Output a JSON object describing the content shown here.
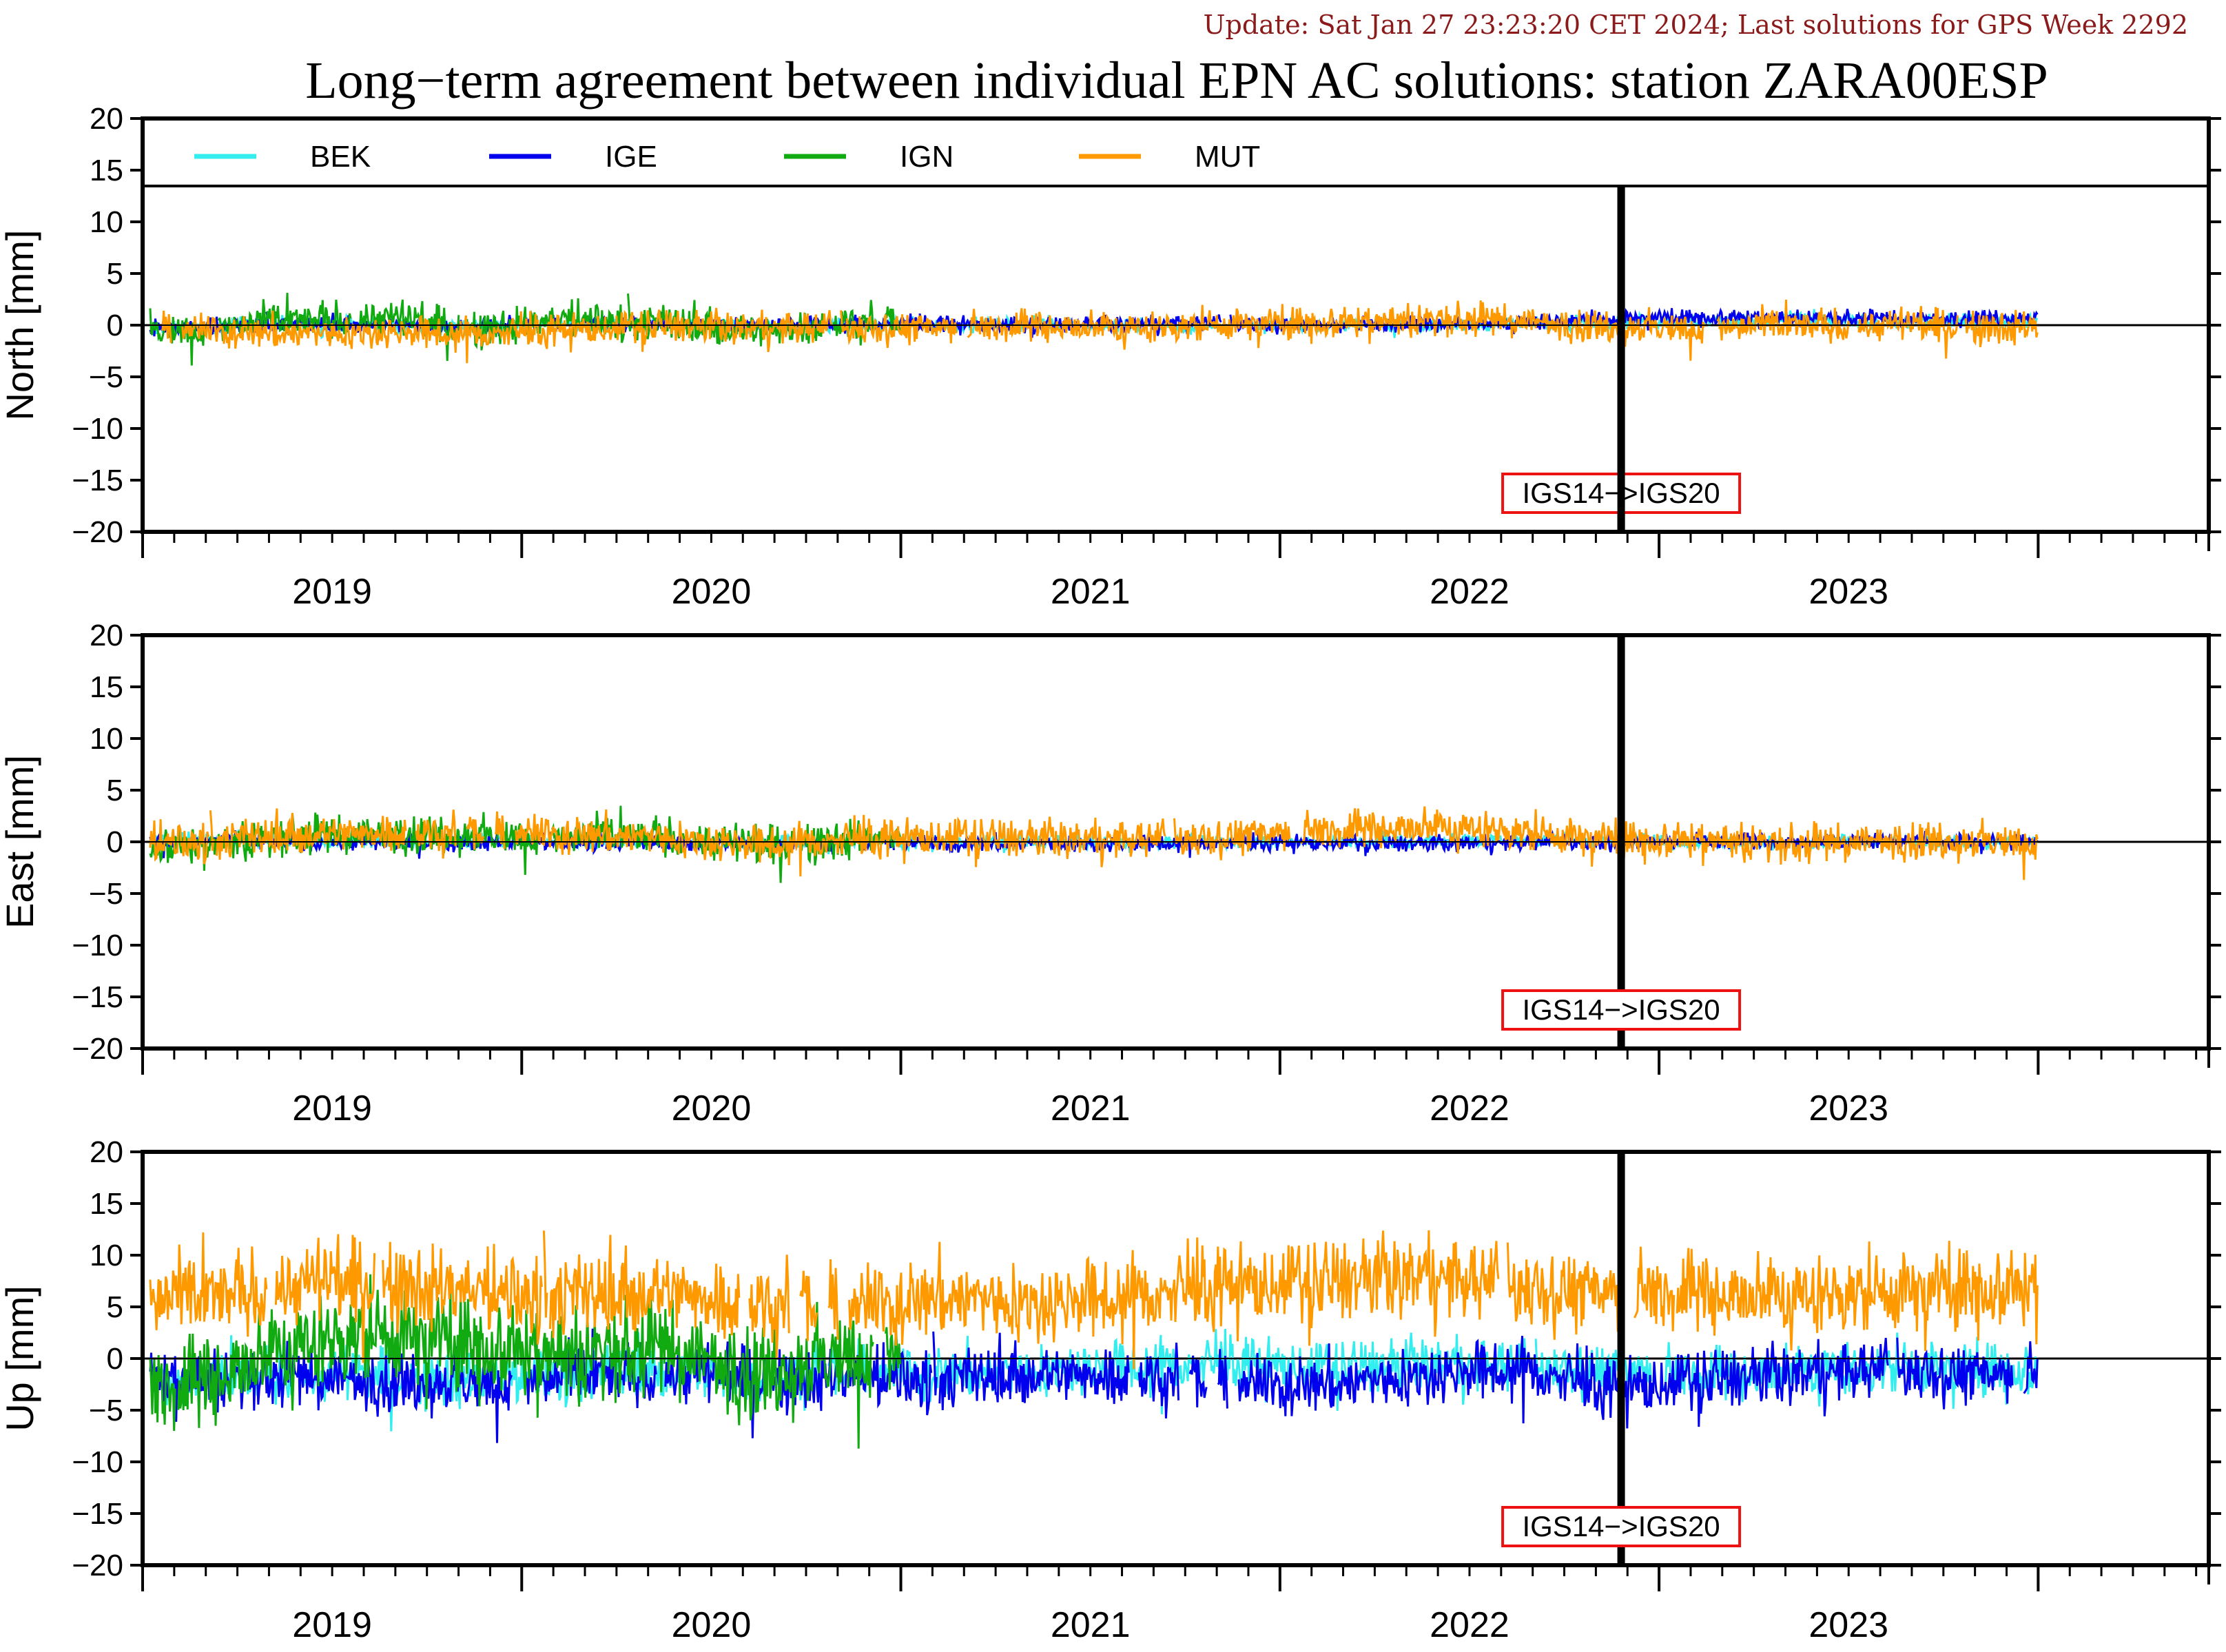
{
  "header": {
    "update_text": "Update: Sat Jan 27 23:23:20 CET 2024; Last solutions for GPS Week 2292",
    "title": "Long−term agreement between individual EPN AC solutions: station ZARA00ESP"
  },
  "colors": {
    "BEK": "#33eeee",
    "IGE": "#0000ee",
    "IGN": "#11aa11",
    "MUT": "#ff9900",
    "frame": "#000000",
    "annotation_border": "#ee1111",
    "update_text": "#8b1a1a"
  },
  "chart_data": [
    {
      "type": "line",
      "panel": "north",
      "ylabel": "North [mm]",
      "ylim": [
        -20,
        20
      ],
      "yticks": [
        "20",
        "15",
        "10",
        "5",
        "0",
        "−5",
        "−10",
        "−15",
        "−20"
      ],
      "xlim": [
        2018.5,
        2023.95
      ],
      "year_labels": [
        "2019",
        "2020",
        "2021",
        "2022",
        "2023"
      ],
      "legend": {
        "location": "top",
        "entries": [
          "BEK",
          "IGE",
          "IGN",
          "MUT"
        ]
      },
      "reference_change": {
        "x": 2022.4,
        "label": "IGS14−>IGS20"
      },
      "series": [
        {
          "name": "BEK",
          "mean": 0.0,
          "amplitude": 0.5,
          "values_by_year": {
            "2019": [
              -0.3,
              0.2,
              0.0,
              -0.2
            ],
            "2020": [
              0.1,
              0.0,
              -0.2,
              0.1
            ],
            "2021": [
              0.0,
              0.1,
              -0.1,
              0.0
            ],
            "2022": [
              -0.1,
              0.0,
              0.2,
              0.3
            ],
            "2023": [
              0.4,
              0.5,
              0.3,
              0.4
            ]
          }
        },
        {
          "name": "IGE",
          "mean": 0.2,
          "amplitude": 0.6,
          "values_by_year": {
            "2019": [
              -0.2,
              0.1,
              0.0,
              0.0
            ],
            "2020": [
              0.1,
              0.2,
              0.0,
              0.1
            ],
            "2021": [
              0.1,
              0.0,
              0.1,
              0.2
            ],
            "2022": [
              0.0,
              0.1,
              0.2,
              0.6
            ],
            "2023": [
              0.8,
              0.7,
              0.6,
              0.7
            ]
          }
        },
        {
          "name": "IGN",
          "mean": -0.2,
          "amplitude": 1.3,
          "values_by_year": {
            "2019": [
              -0.5,
              0.3,
              0.8,
              -0.4
            ],
            "2020": [
              0.6,
              0.2,
              -0.6,
              0.4
            ]
          }
        },
        {
          "name": "MUT",
          "mean": -0.1,
          "amplitude": 1.2,
          "values_by_year": {
            "2019": [
              -0.4,
              -0.8,
              -0.6,
              -0.9
            ],
            "2020": [
              -0.5,
              0.0,
              -0.3,
              -0.2
            ],
            "2021": [
              -0.2,
              0.0,
              -0.3,
              0.1
            ],
            "2022": [
              0.3,
              0.6,
              0.4,
              -0.2
            ],
            "2023": [
              -0.3,
              -0.1,
              0.0,
              -0.2
            ]
          }
        }
      ]
    },
    {
      "type": "line",
      "panel": "east",
      "ylabel": "East [mm]",
      "ylim": [
        -20,
        20
      ],
      "yticks": [
        "20",
        "15",
        "10",
        "5",
        "0",
        "−5",
        "−10",
        "−15",
        "−20"
      ],
      "xlim": [
        2018.5,
        2023.95
      ],
      "year_labels": [
        "2019",
        "2020",
        "2021",
        "2022",
        "2023"
      ],
      "reference_change": {
        "x": 2022.4,
        "label": "IGS14−>IGS20"
      },
      "series": [
        {
          "name": "BEK",
          "mean": 0.0,
          "amplitude": 0.5,
          "values_by_year": {
            "2019": [
              0.2,
              0.1,
              0.0,
              0.1
            ],
            "2020": [
              0.0,
              0.1,
              -0.1,
              0.0
            ],
            "2021": [
              -0.1,
              0.0,
              -0.1,
              0.0
            ],
            "2022": [
              0.0,
              0.1,
              0.2,
              0.1
            ],
            "2023": [
              0.0,
              -0.1,
              0.1,
              0.0
            ]
          }
        },
        {
          "name": "IGE",
          "mean": -0.1,
          "amplitude": 0.6,
          "values_by_year": {
            "2019": [
              0.0,
              0.0,
              -0.1,
              0.0
            ],
            "2020": [
              0.0,
              -0.1,
              -0.2,
              -0.1
            ],
            "2021": [
              -0.2,
              -0.1,
              -0.2,
              -0.1
            ],
            "2022": [
              -0.1,
              -0.2,
              -0.1,
              0.0
            ],
            "2023": [
              0.1,
              0.0,
              0.1,
              0.0
            ]
          }
        },
        {
          "name": "IGN",
          "mean": 0.2,
          "amplitude": 1.4,
          "values_by_year": {
            "2019": [
              -0.3,
              0.5,
              0.8,
              0.6
            ],
            "2020": [
              0.4,
              0.5,
              -0.5,
              0.3
            ]
          }
        },
        {
          "name": "MUT",
          "mean": 0.4,
          "amplitude": 1.4,
          "values_by_year": {
            "2019": [
              0.0,
              0.6,
              1.0,
              0.9
            ],
            "2020": [
              0.7,
              0.5,
              -0.3,
              0.2
            ],
            "2021": [
              0.5,
              0.3,
              0.2,
              0.6
            ],
            "2022": [
              1.2,
              1.5,
              1.0,
              0.2
            ],
            "2023": [
              0.3,
              -0.3,
              0.2,
              0.0
            ]
          }
        }
      ]
    },
    {
      "type": "line",
      "panel": "up",
      "ylabel": "Up [mm]",
      "ylim": [
        -20,
        20
      ],
      "yticks": [
        "20",
        "15",
        "10",
        "5",
        "0",
        "−5",
        "−10",
        "−15",
        "−20"
      ],
      "xlim": [
        2018.5,
        2023.95
      ],
      "year_labels": [
        "2019",
        "2020",
        "2021",
        "2022",
        "2023"
      ],
      "reference_change": {
        "x": 2022.4,
        "label": "IGS14−>IGS20"
      },
      "series": [
        {
          "name": "BEK",
          "mean": -1.2,
          "amplitude": 2.0,
          "values_by_year": {
            "2019": [
              -2.5,
              -1.5,
              -1.8,
              -2.0
            ],
            "2020": [
              -1.5,
              -1.2,
              -1.8,
              -1.0
            ],
            "2021": [
              -1.5,
              -1.0,
              -0.8,
              -0.5
            ],
            "2022": [
              -1.0,
              -0.5,
              -0.8,
              -1.0
            ],
            "2023": [
              -1.5,
              -1.2,
              -0.8,
              -1.0
            ]
          }
        },
        {
          "name": "IGE",
          "mean": -1.5,
          "amplitude": 2.2,
          "values_by_year": {
            "2019": [
              -2.0,
              -1.8,
              -2.2,
              -2.5
            ],
            "2020": [
              -2.0,
              -1.5,
              -2.0,
              -1.8
            ],
            "2021": [
              -2.0,
              -1.5,
              -1.5,
              -2.5
            ],
            "2022": [
              -2.5,
              -1.5,
              -1.0,
              -3.0
            ],
            "2023": [
              -2.0,
              -1.5,
              -1.0,
              -1.5
            ]
          }
        },
        {
          "name": "IGN",
          "mean": -0.5,
          "amplitude": 3.5,
          "values_by_year": {
            "2019": [
              -2.5,
              1.0,
              2.5,
              1.5
            ],
            "2020": [
              0.5,
              1.0,
              -1.5,
              0.5
            ]
          }
        },
        {
          "name": "MUT",
          "mean": 6.5,
          "amplitude": 3.0,
          "values_by_year": {
            "2019": [
              5.5,
              7.0,
              7.5,
              6.5
            ],
            "2020": [
              6.0,
              6.5,
              5.5,
              5.0
            ],
            "2021": [
              6.0,
              5.5,
              6.0,
              7.0
            ],
            "2022": [
              7.5,
              8.0,
              7.0,
              6.5
            ],
            "2023": [
              6.5,
              6.0,
              6.5,
              7.0
            ]
          }
        }
      ]
    }
  ]
}
